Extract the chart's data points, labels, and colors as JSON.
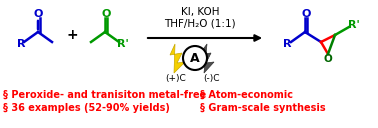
{
  "bg_color": "#ffffff",
  "text_color_red": "#ff0000",
  "text_color_blue": "#0000cc",
  "text_color_green": "#009900",
  "text_color_black": "#000000",
  "text_color_dark": "#333333",
  "reaction_conditions_line1": "KI, KOH",
  "reaction_conditions_line2": "THF/H₂O (1:1)",
  "bullet1_left": "§ Peroxide- and tranisiton metal-free",
  "bullet2_left": "§ 36 examples (52-90% yields)",
  "bullet1_right": "§ Atom-economic",
  "bullet2_right": "§ Gram-scale synthesis",
  "plus_sign": "+",
  "anode_label": "(+)C",
  "cathode_label": "(-)C",
  "ammeter_label": "A",
  "figsize": [
    3.78,
    1.28
  ],
  "dpi": 100
}
